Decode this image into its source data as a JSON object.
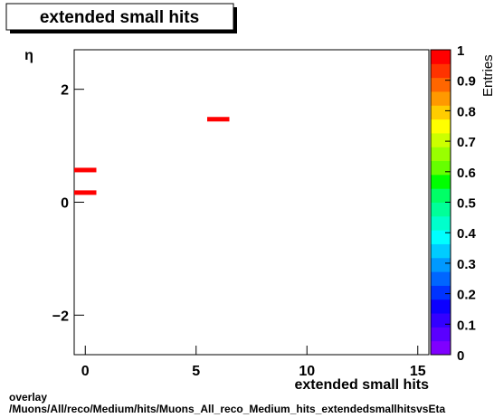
{
  "chart_data": {
    "type": "heatmap",
    "title": "extended small hits",
    "x_label": "extended small hits",
    "y_label": "η",
    "z_label": "Entries",
    "xlim": [
      -0.5,
      15.5
    ],
    "xticks": [
      0,
      5,
      10,
      15
    ],
    "ylim": [
      -2.7,
      2.7
    ],
    "yticks": [
      {
        "value": -2,
        "label": "−2"
      },
      0,
      2
    ],
    "zlim": [
      0,
      1
    ],
    "zticks": [
      0,
      0.1,
      0.2,
      0.3,
      0.4,
      0.5,
      0.6,
      0.7,
      0.8,
      0.9,
      1
    ],
    "palette": [
      "#7f00ff",
      "#5a00ff",
      "#3300ff",
      "#0c00ff",
      "#0033ff",
      "#0066ff",
      "#0099ff",
      "#00ccff",
      "#00ffff",
      "#00ffcc",
      "#00ff99",
      "#00ff66",
      "#00ff00",
      "#66ff00",
      "#99ff00",
      "#ccff00",
      "#ffff00",
      "#ffcc00",
      "#ff9900",
      "#ff6600",
      "#ff3300",
      "#ff0000"
    ],
    "cells": [
      {
        "x": [
          -0.5,
          0.5
        ],
        "y": [
          0.13,
          0.21
        ],
        "value": 1
      },
      {
        "x": [
          -0.5,
          0.5
        ],
        "y": [
          0.53,
          0.61
        ],
        "value": 1
      },
      {
        "x": [
          5.5,
          6.5
        ],
        "y": [
          1.43,
          1.51
        ],
        "value": 1
      }
    ]
  },
  "footer": {
    "line1": "overlay",
    "line2": "/Muons/All/reco/Medium/hits/Muons_All_reco_Medium_hits_extendedsmallhitsvsEta"
  }
}
